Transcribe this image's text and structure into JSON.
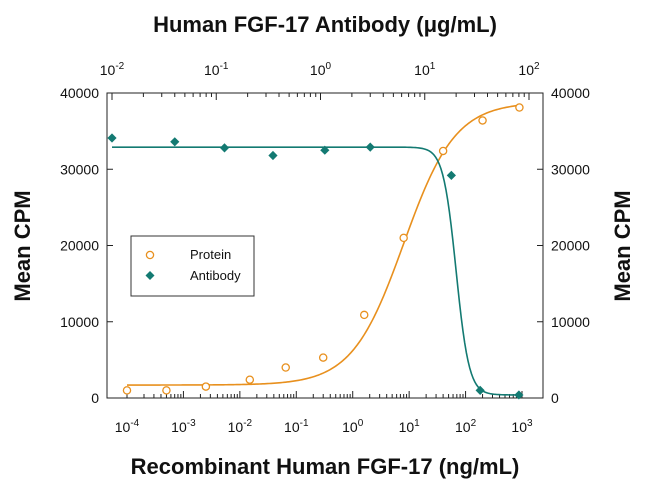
{
  "chart_data": {
    "type": "scatter",
    "title_top": "Human FGF-17 Antibody (μg/mL)",
    "xlabel": "Recombinant Human FGF-17 (ng/mL)",
    "ylabel_left": "Mean CPM",
    "ylabel_right": "Mean CPM",
    "x_scale": "log",
    "xlim": [
      0.0001,
      1000
    ],
    "x_top_scale": "log",
    "x_top_lim": [
      0.01,
      100
    ],
    "ylim": [
      0,
      40000
    ],
    "y_ticks": [
      0,
      10000,
      20000,
      30000,
      40000
    ],
    "y_tick_labels": [
      "0",
      "10000",
      "20000",
      "30000",
      "40000"
    ],
    "x_ticks": [
      {
        "value": 0.0001,
        "base": "10",
        "exp": "-4"
      },
      {
        "value": 0.001,
        "base": "10",
        "exp": "-3"
      },
      {
        "value": 0.01,
        "base": "10",
        "exp": "-2"
      },
      {
        "value": 0.1,
        "base": "10",
        "exp": "-1"
      },
      {
        "value": 1,
        "base": "10",
        "exp": "0"
      },
      {
        "value": 10,
        "base": "10",
        "exp": "1"
      },
      {
        "value": 100,
        "base": "10",
        "exp": "2"
      },
      {
        "value": 1000,
        "base": "10",
        "exp": "3"
      }
    ],
    "x_top_ticks": [
      {
        "value": 0.01,
        "base": "10",
        "exp": "-2"
      },
      {
        "value": 0.1,
        "base": "10",
        "exp": "-1"
      },
      {
        "value": 1,
        "base": "10",
        "exp": "0"
      },
      {
        "value": 10,
        "base": "10",
        "exp": "1"
      },
      {
        "value": 100,
        "base": "10",
        "exp": "2"
      }
    ],
    "legend_placement": "left-center",
    "grid": false,
    "series": [
      {
        "name": "Protein",
        "axis": "bottom",
        "marker": "open-circle",
        "color": "#e8901e",
        "points": [
          {
            "x": 0.0001,
            "y": 1000
          },
          {
            "x": 0.0005,
            "y": 1000
          },
          {
            "x": 0.0025,
            "y": 1500
          },
          {
            "x": 0.015,
            "y": 2400
          },
          {
            "x": 0.065,
            "y": 4000
          },
          {
            "x": 0.3,
            "y": 5300
          },
          {
            "x": 1.6,
            "y": 10900
          },
          {
            "x": 8,
            "y": 21000
          },
          {
            "x": 40,
            "y": 32400
          },
          {
            "x": 200,
            "y": 36400
          },
          {
            "x": 900,
            "y": 38100
          }
        ],
        "fit": {
          "bottom": 1700,
          "top": 38800,
          "ec50": 8,
          "hill": 0.95
        }
      },
      {
        "name": "Antibody",
        "axis": "top",
        "marker": "filled-diamond",
        "color": "#137a72",
        "points": [
          {
            "x": 0.01,
            "y": 34100
          },
          {
            "x": 0.04,
            "y": 33600
          },
          {
            "x": 0.12,
            "y": 32800
          },
          {
            "x": 0.35,
            "y": 31800
          },
          {
            "x": 1.1,
            "y": 32500
          },
          {
            "x": 3,
            "y": 32900
          },
          {
            "x": 18,
            "y": 29200
          },
          {
            "x": 34,
            "y": 1000
          },
          {
            "x": 80,
            "y": 400
          }
        ],
        "fit": {
          "bottom": 400,
          "top": 32900,
          "ec50": 20,
          "hill": 7
        }
      }
    ]
  }
}
